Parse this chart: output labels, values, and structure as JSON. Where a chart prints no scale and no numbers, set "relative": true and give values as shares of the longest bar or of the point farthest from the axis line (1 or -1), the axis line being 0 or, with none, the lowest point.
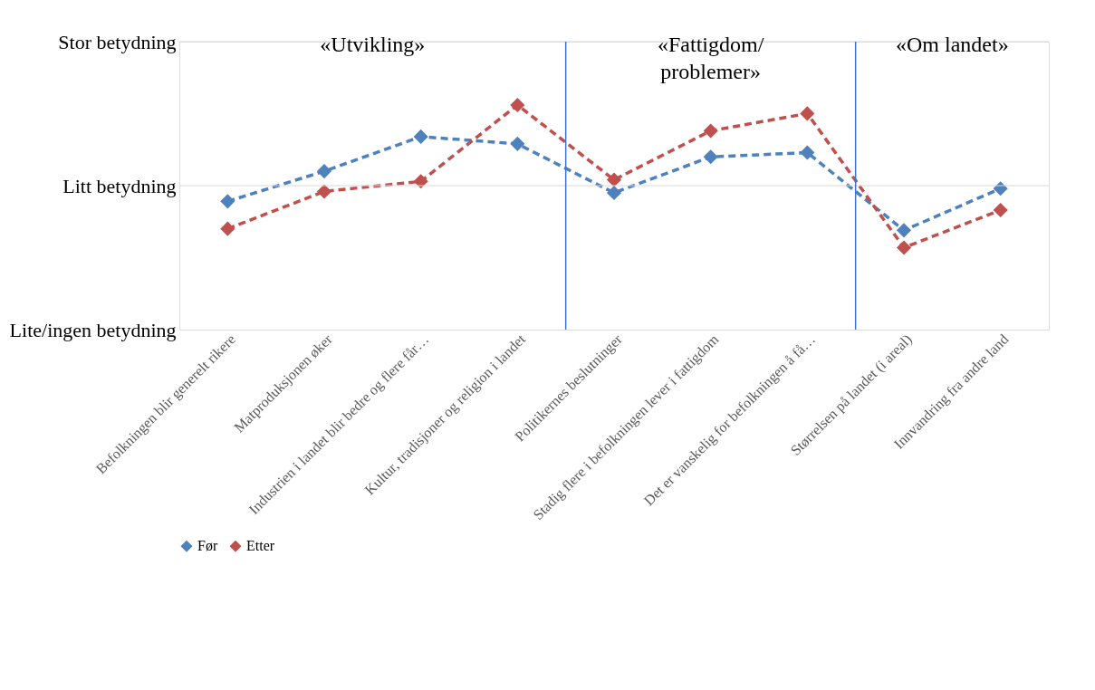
{
  "chart_data": {
    "type": "line",
    "relative": true,
    "categories": [
      "Befolkningen blir generelt rikere",
      "Matproduksjonen øker",
      "Industrien i landet blir bedre og flere får…",
      "Kultur, tradisjoner og religion i landet",
      "Politikernes beslutninger",
      "Stadig flere i befolkningen lever i fattigdom",
      "Det er vanskelig for befolkningen å få…",
      "Størrelsen på landet (i areal)",
      "Innvandring fra andre land"
    ],
    "series": [
      {
        "name": "Før",
        "color": "#4f81bd",
        "values": [
          0.571,
          0.705,
          0.859,
          0.827,
          0.609,
          0.769,
          0.788,
          0.442,
          0.628
        ]
      },
      {
        "name": "Etter",
        "color": "#c0504d",
        "values": [
          0.449,
          0.615,
          0.66,
          1,
          0.667,
          0.885,
          0.962,
          0.365,
          0.532
        ]
      }
    ],
    "ref_lines": [
      {
        "axis": "y",
        "value": 0.641,
        "label": "Litt betydning",
        "color": "#d9d9d9"
      },
      {
        "axis": "y",
        "value": 1.282,
        "label": "Stor betydning",
        "color": "#d9d9d9"
      }
    ],
    "annotations": [
      "«Utvikling»",
      "«Fattigdom/\nproblemer»",
      "«Om landet»",
      "Lite/ingen betydning"
    ],
    "legend": "bottom",
    "marker": "diamond",
    "line_style": "dashed"
  }
}
